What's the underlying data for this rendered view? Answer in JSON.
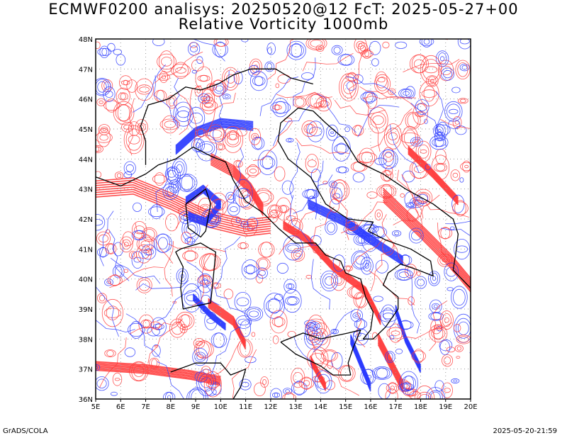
{
  "title_line1": "ECMWF0200 analisys: 20250520@12 FcT: 2025-05-27+00",
  "title_line2": "Relative Vorticity 1000mb",
  "footer_left": "GrADS/COLA",
  "footer_right": "2025-05-20-21:59",
  "map": {
    "lon_range": [
      5,
      20
    ],
    "lat_range": [
      36,
      48
    ],
    "lon_labels": [
      "5E",
      "6E",
      "7E",
      "8E",
      "9E",
      "10E",
      "11E",
      "12E",
      "13E",
      "14E",
      "15E",
      "16E",
      "17E",
      "18E",
      "19E",
      "20E"
    ],
    "lat_labels": [
      "36N",
      "37N",
      "38N",
      "39N",
      "40N",
      "41N",
      "42N",
      "43N",
      "44N",
      "45N",
      "46N",
      "47N",
      "48N"
    ],
    "colors": {
      "positive": "#ff3a3a",
      "negative": "#2a3aff",
      "coast": "#000000",
      "grid": "#9a9a9a"
    }
  }
}
